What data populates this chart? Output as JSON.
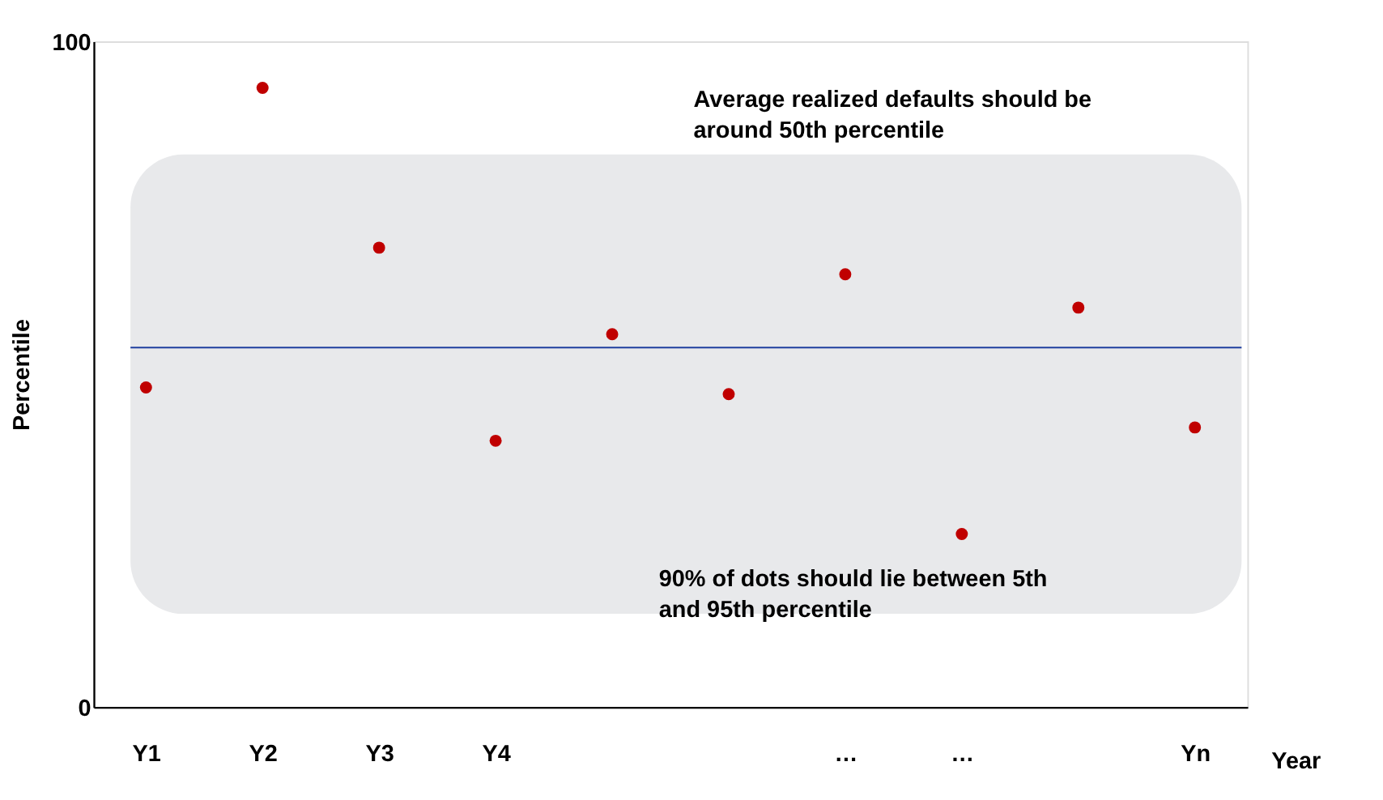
{
  "chart_data": {
    "type": "scatter",
    "ylabel": "Percentile",
    "xlabel": "Year",
    "categories": [
      "Y1",
      "Y2",
      "Y3",
      "Y4",
      null,
      null,
      "…",
      "…",
      null,
      "Yn"
    ],
    "values": [
      48,
      93,
      69,
      40,
      56,
      47,
      65,
      26,
      60,
      42
    ],
    "color": "#c00000",
    "ylim": [
      0,
      100
    ],
    "yticks": [
      0,
      100
    ],
    "grid": false,
    "legend": false,
    "marker": "circle",
    "ref_lines": [
      {
        "axis": "y",
        "value": 54,
        "color": "#1f3f9f",
        "line_style": "solid"
      }
    ],
    "bands": [
      {
        "axis": "y",
        "from": 14,
        "to": 83,
        "color": "#e8e9eb"
      }
    ],
    "annotations": [
      "Average realized defaults should be around 50th percentile",
      "90% of dots should lie between 5th and 95th percentile"
    ]
  }
}
